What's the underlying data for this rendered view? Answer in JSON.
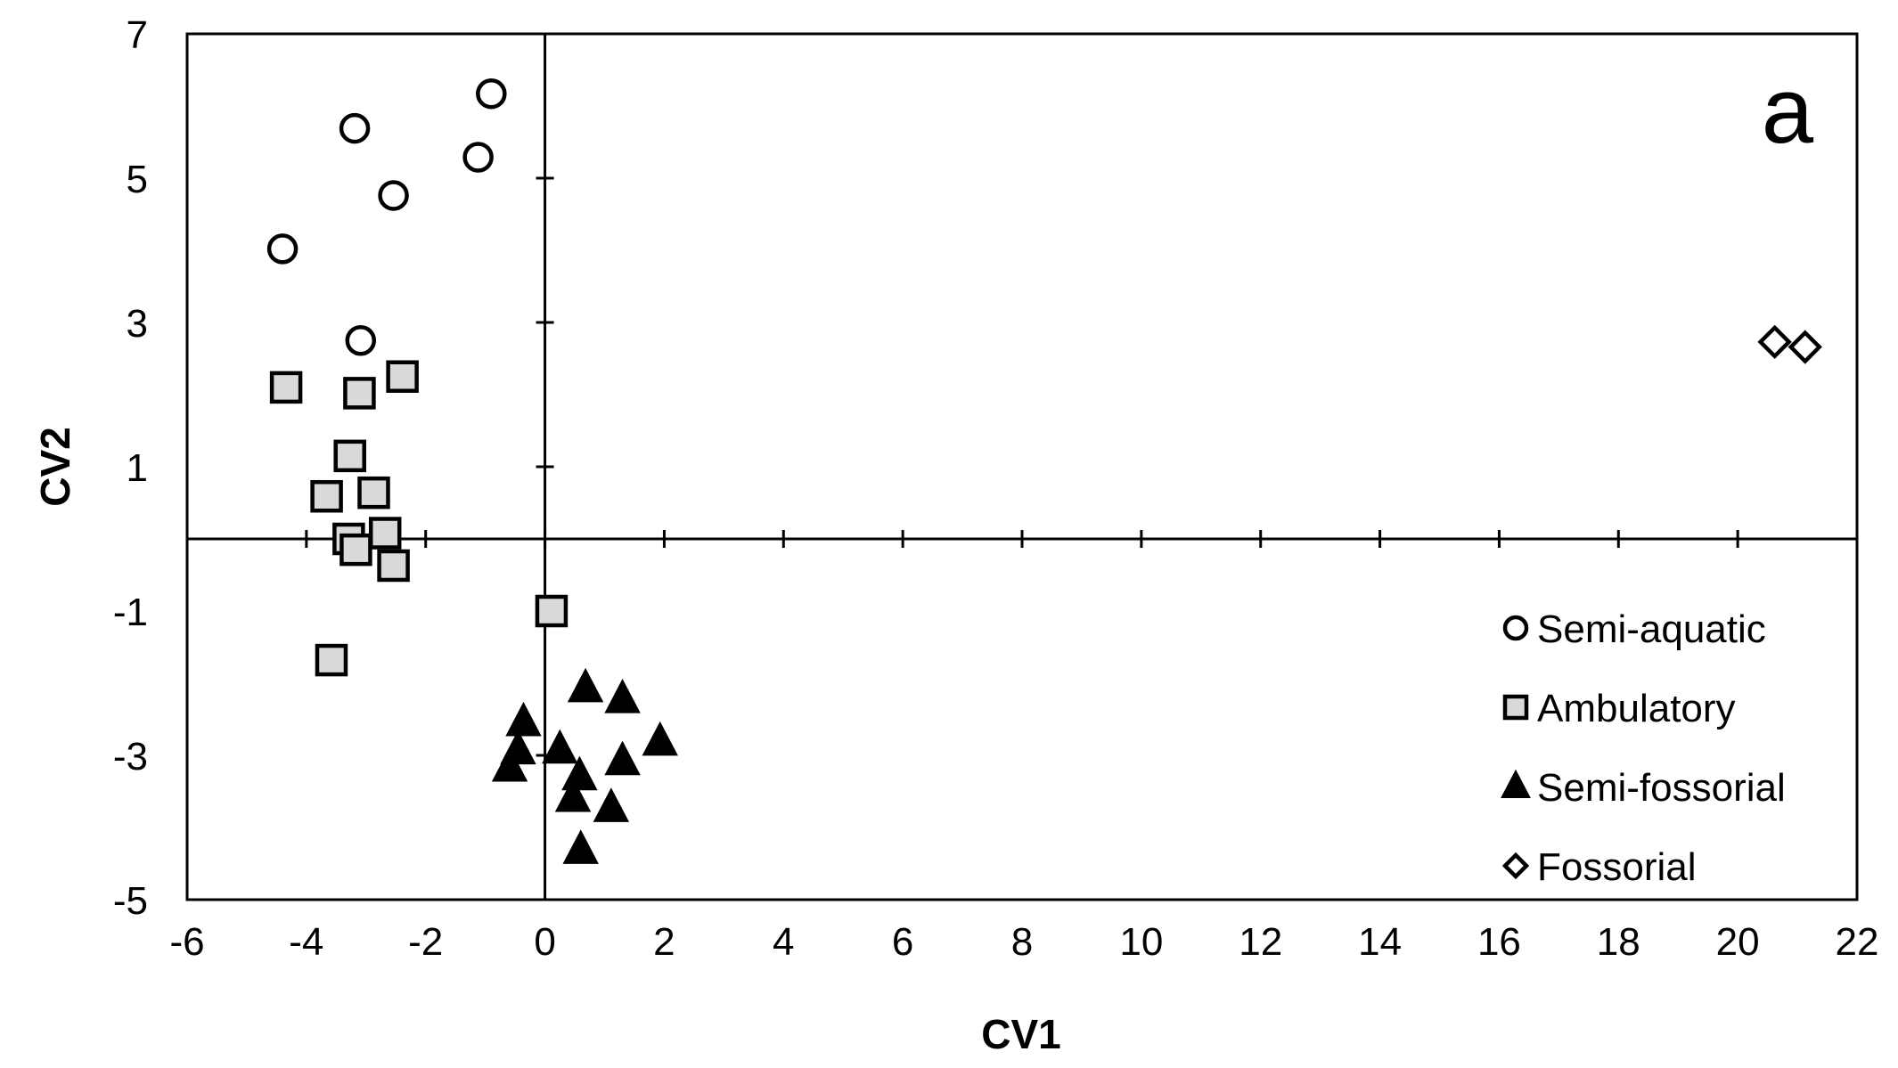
{
  "chart_data": {
    "type": "scatter",
    "annotation": "a",
    "xlabel": "CV1",
    "ylabel": "CV2",
    "xlim": [
      -6,
      22
    ],
    "xticks": [
      -6,
      -4,
      -2,
      0,
      2,
      4,
      6,
      8,
      10,
      12,
      14,
      16,
      18,
      20,
      22
    ],
    "ylim": [
      -5,
      7
    ],
    "yticks": [
      -5,
      -3,
      -1,
      1,
      3,
      5,
      7
    ],
    "legend": "lower right",
    "series": [
      {
        "name": "Semi-aquatic",
        "marker": "circle",
        "color": "#ffffff",
        "x": [
          -0.9,
          -3.19,
          -1.12,
          -2.54,
          -4.4,
          -3.09
        ],
        "y": [
          6.17,
          5.69,
          5.29,
          4.76,
          4.02,
          2.75
        ]
      },
      {
        "name": "Ambulatory",
        "marker": "square",
        "color": "#d9d9d9",
        "x": [
          -4.34,
          -3.11,
          -2.39,
          -3.27,
          -3.66,
          -2.87,
          -3.29,
          -2.68,
          -3.17,
          -2.54,
          0.11,
          -3.58
        ],
        "y": [
          2.1,
          2.02,
          2.25,
          1.15,
          0.59,
          0.64,
          0.0,
          0.08,
          -0.15,
          -0.37,
          -1.0,
          -1.68
        ]
      },
      {
        "name": "Semi-fossorial",
        "marker": "triangle",
        "color": "#000000",
        "x": [
          0.68,
          1.3,
          -0.36,
          1.93,
          0.25,
          -0.45,
          1.3,
          -0.59,
          0.58,
          0.47,
          1.11,
          0.6
        ],
        "y": [
          -2.07,
          -2.22,
          -2.54,
          -2.81,
          -2.92,
          -2.93,
          -3.08,
          -3.17,
          -3.29,
          -3.59,
          -3.73,
          -4.31
        ]
      },
      {
        "name": "Fossorial",
        "marker": "diamond",
        "color": "#ffffff",
        "x": [
          20.62,
          21.13
        ],
        "y": [
          2.73,
          2.66
        ]
      }
    ]
  }
}
